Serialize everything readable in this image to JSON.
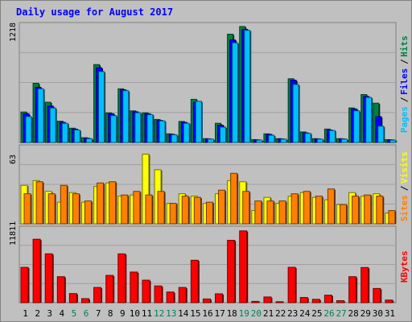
{
  "chart_data": {
    "type": "bar",
    "title": "Daily usage for August 2017",
    "categories": [
      "1",
      "2",
      "3",
      "4",
      "5",
      "6",
      "7",
      "8",
      "9",
      "10",
      "11",
      "12",
      "13",
      "14",
      "15",
      "16",
      "17",
      "18",
      "19",
      "20",
      "21",
      "22",
      "23",
      "24",
      "25",
      "26",
      "27",
      "28",
      "29",
      "30",
      "31"
    ],
    "weekend_days": [
      "5",
      "6",
      "12",
      "13",
      "19",
      "20",
      "26",
      "27"
    ],
    "grid": true,
    "panels": [
      {
        "id": "pages_files_hits",
        "axis_max_label": "1218",
        "ylim": [
          0,
          1218
        ],
        "series": [
          {
            "name": "Hits",
            "color": "#008040",
            "values": [
              318,
              617,
              420,
              222,
              149,
              50,
              813,
              309,
              560,
              330,
              310,
              240,
              90,
              219,
              450,
              40,
              200,
              1130,
              1210,
              30,
              90,
              40,
              665,
              110,
              40,
              140,
              40,
              360,
              500,
              410,
              30
            ]
          },
          {
            "name": "Files",
            "color": "#0000ff",
            "values": [
              300,
              575,
              380,
              210,
              140,
              45,
              780,
              300,
              550,
              320,
              300,
              230,
              85,
              210,
              420,
              38,
              180,
              1070,
              1180,
              28,
              85,
              38,
              650,
              100,
              38,
              130,
              38,
              350,
              480,
              270,
              28
            ]
          },
          {
            "name": "Pages",
            "color": "#00c0ff",
            "values": [
              270,
              560,
              360,
              200,
              130,
              40,
              740,
              280,
              540,
              310,
              290,
              225,
              80,
              200,
              430,
              35,
              160,
              1040,
              1170,
              25,
              75,
              35,
              605,
              95,
              35,
              125,
              35,
              330,
              470,
              170,
              25
            ]
          }
        ],
        "legend_labels": [
          {
            "text": "Pages",
            "color": "#00c0ff"
          },
          {
            "text": "Files",
            "color": "#0000ff"
          },
          {
            "text": "Hits",
            "color": "#008040"
          }
        ]
      },
      {
        "id": "sites_visits",
        "axis_max_label": "63",
        "ylim": [
          0,
          63
        ],
        "series": [
          {
            "name": "Visits",
            "color": "#ffff00",
            "values": [
              32,
              36,
              27,
              18,
              26,
              18,
              31,
              34,
              23,
              24,
              58,
              45,
              17,
              25,
              23,
              17,
              25,
              36,
              35,
              11,
              22,
              17,
              23,
              26,
              22,
              20,
              16,
              26,
              23,
              25,
              9
            ]
          },
          {
            "name": "Sites",
            "color": "#ff8000",
            "values": [
              25,
              35,
              25,
              32,
              25,
              19,
              34,
              35,
              24,
              27,
              24,
              27,
              17,
              23,
              22,
              18,
              28,
              42,
              27,
              19,
              19,
              19,
              25,
              27,
              23,
              29,
              16,
              23,
              24,
              23,
              11
            ]
          }
        ],
        "legend_labels": [
          {
            "text": "Sites",
            "color": "#ff8000"
          },
          {
            "text": "Visits",
            "color": "#ffff00"
          }
        ]
      },
      {
        "id": "kbytes",
        "axis_max_label": "11811",
        "ylim": [
          0,
          11811
        ],
        "series": [
          {
            "name": "KBytes",
            "color": "#ff0000",
            "values": [
              5700,
              10230,
              7880,
              4190,
              1470,
              650,
              2450,
              4400,
              7870,
              4940,
              3630,
              2700,
              1720,
              2450,
              6840,
              600,
              1430,
              10060,
              11580,
              210,
              920,
              150,
              5700,
              840,
              540,
              1210,
              320,
              4190,
              5670,
              2290,
              420
            ]
          }
        ],
        "legend_labels": [
          {
            "text": "KBytes",
            "color": "#ff0000"
          }
        ]
      }
    ]
  },
  "colors": {
    "background": "#c0c0c0",
    "plot_border": "#808080",
    "gridline": "#a0a0a0",
    "title": "#0000ff",
    "axis_text": "#000000",
    "weekday_text": "#000000",
    "weekend_text": "#00805c"
  }
}
